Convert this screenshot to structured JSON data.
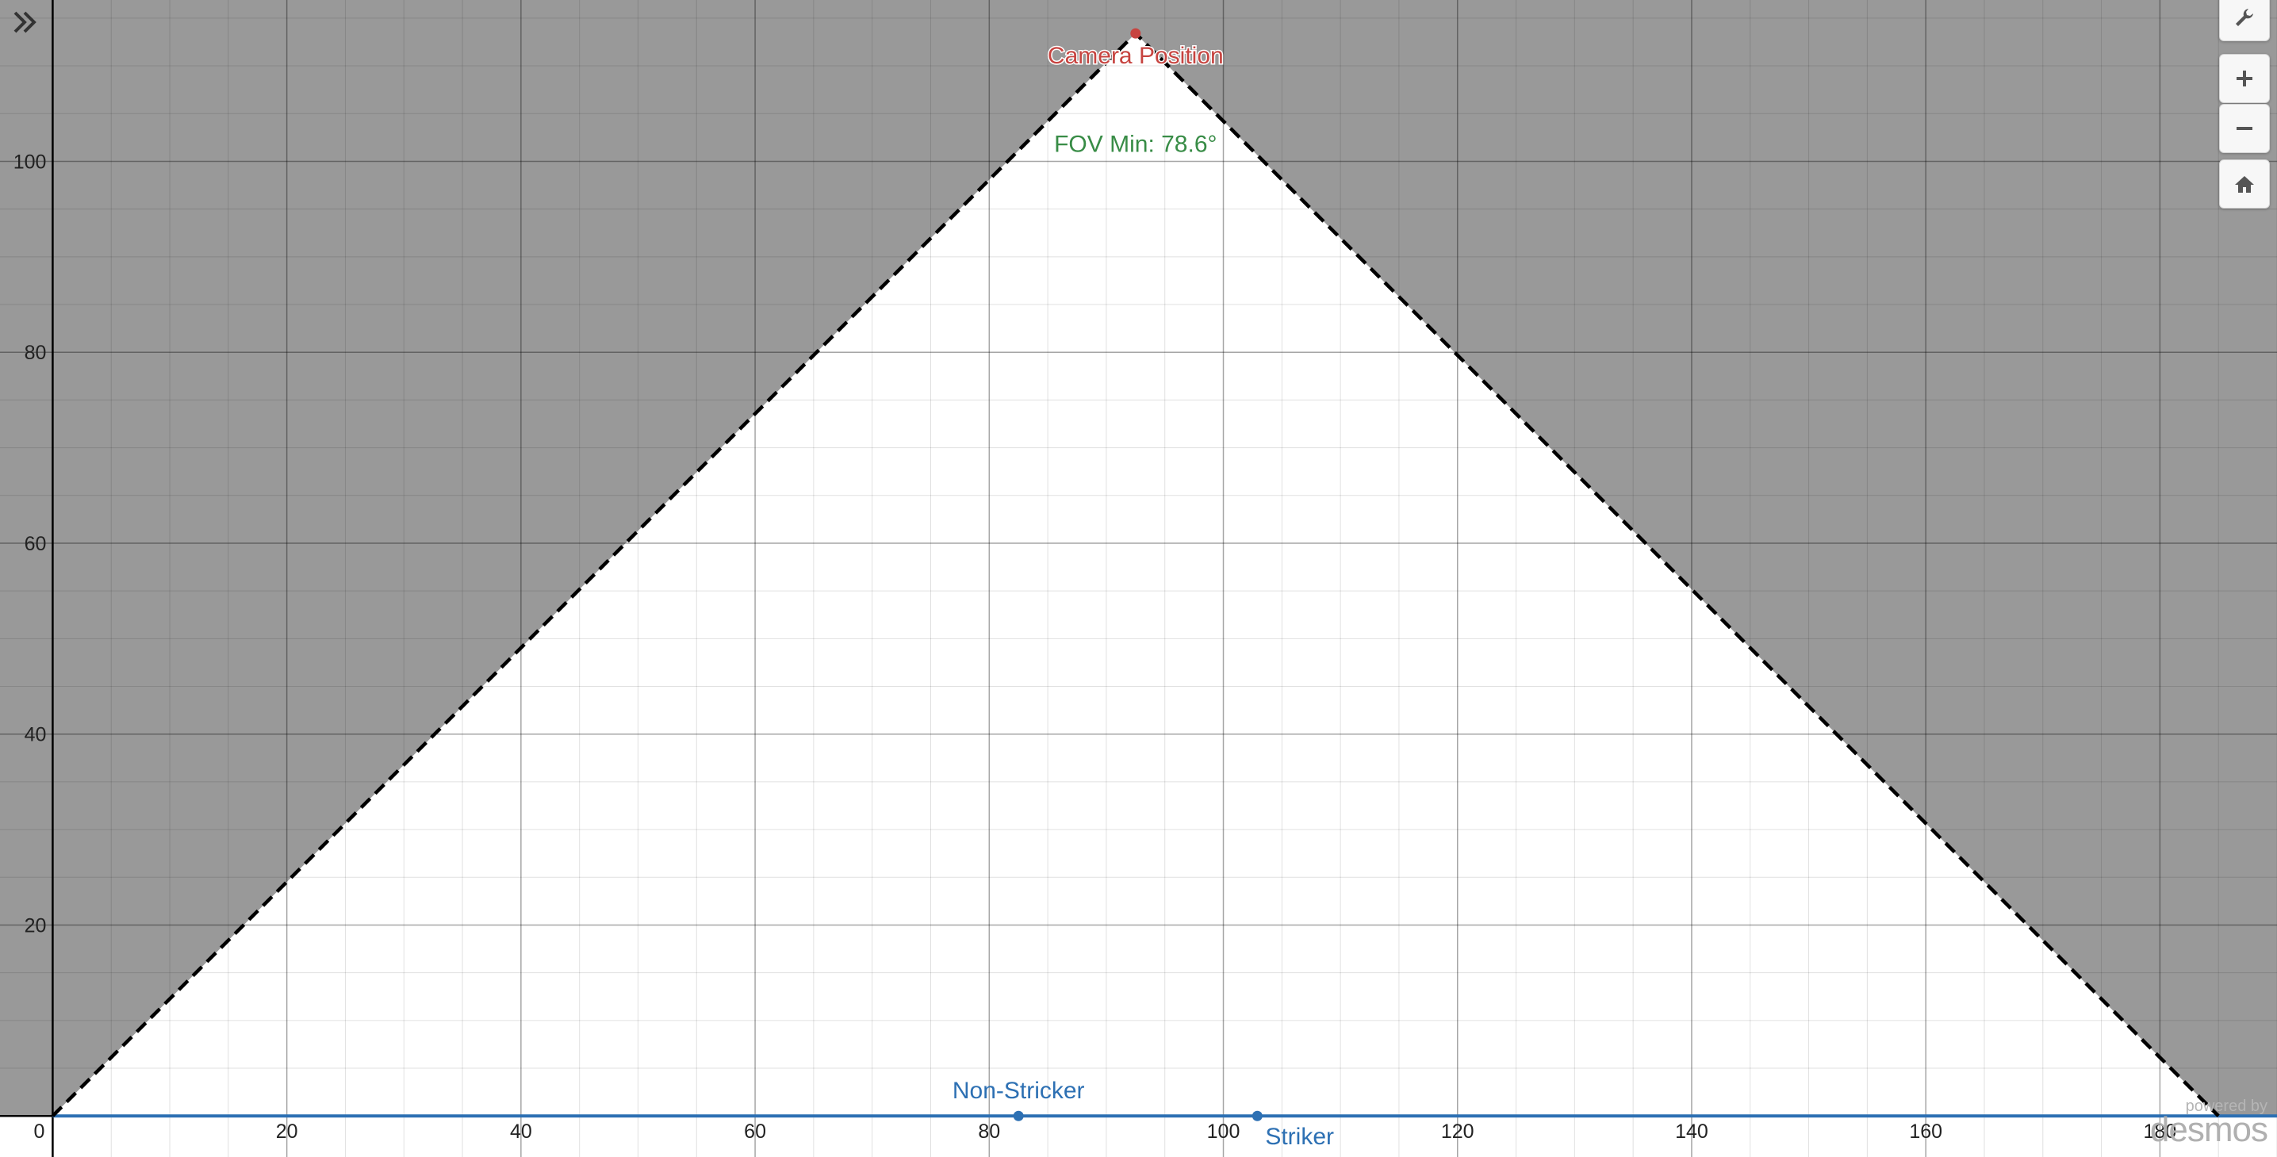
{
  "chart_data": {
    "type": "line",
    "xlim": [
      -4.5,
      190
    ],
    "ylim": [
      -4.3,
      116.9
    ],
    "x_ticks": [
      0,
      20,
      40,
      60,
      80,
      100,
      120,
      140,
      160,
      180
    ],
    "x_tick_labels": [
      "0",
      "20",
      "40",
      "60",
      "80",
      "100",
      "120",
      "140",
      "160",
      "180"
    ],
    "y_ticks": [
      20,
      40,
      60,
      80,
      100
    ],
    "y_tick_labels": [
      "20",
      "40",
      "60",
      "80",
      "100"
    ],
    "origin_label": "0",
    "minor_grid_step": 5,
    "major_grid_step": 20,
    "fov_boundary": {
      "style": "dashed",
      "color": "#000000",
      "points": [
        [
          0,
          0
        ],
        [
          92.5,
          113.4
        ],
        [
          185,
          0
        ]
      ]
    },
    "shaded_outside": "#999999",
    "baseline": {
      "y": 0,
      "x_from": 0,
      "x_to": 190,
      "color": "#2d70b3"
    },
    "points": [
      {
        "name": "camera-position",
        "label": "Camera Position",
        "x": 92.5,
        "y": 113.4,
        "color": "#c74440"
      },
      {
        "name": "non-stricker",
        "label": "Non-Stricker",
        "x": 82.5,
        "y": 0,
        "color": "#2d70b3"
      },
      {
        "name": "striker",
        "label": "Striker",
        "x": 102.9,
        "y": 0,
        "color": "#2d70b3"
      }
    ],
    "annotations": [
      {
        "name": "fov-min-label",
        "text": "FOV Min: 78.6°",
        "x": 92.5,
        "y": 101,
        "color": "#388c46"
      }
    ]
  },
  "toolbar": {
    "settings_icon": "wrench-icon",
    "zoom_in_icon": "plus-icon",
    "zoom_out_icon": "minus-icon",
    "home_icon": "home-icon",
    "expand_icon": "double-chevron-right-icon"
  },
  "branding": {
    "powered_by": "powered by",
    "name": "desmos"
  }
}
